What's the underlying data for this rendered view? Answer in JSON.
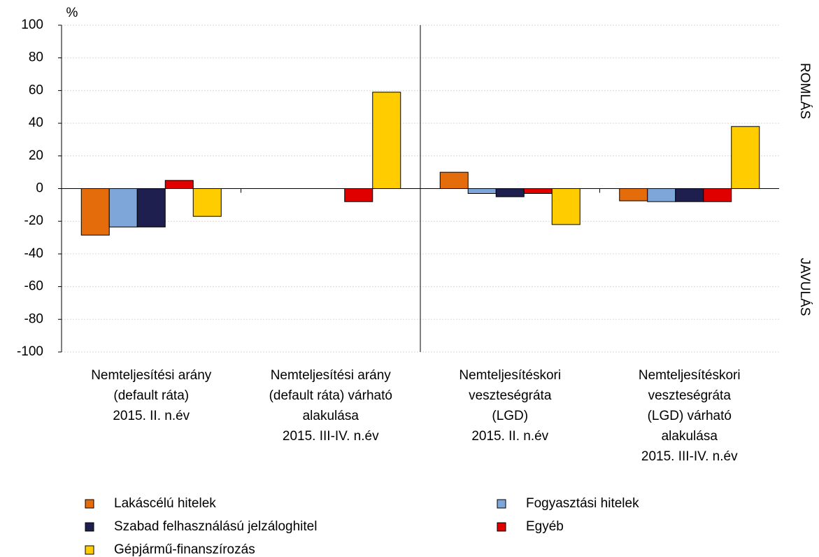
{
  "chart_data": {
    "type": "bar",
    "ylabel": "%",
    "annotations": [
      "ROMLÁS",
      "JAVULÁS"
    ],
    "categories": [
      "Nemteljesítési arány\n(default ráta)\n2015. II. n.év",
      "Nemteljesítési arány\n(default ráta) várható\nalakulása\n2015. III-IV. n.év",
      "Nemteljesítéskori\nveszteségráta\n(LGD)\n2015. II. n.év",
      "Nemteljesítéskori\nveszteségráta\n(LGD) várható\nalakulása\n2015. III-IV. n.év"
    ],
    "series": [
      {
        "name": "Lakáscélú hitelek",
        "color": "#e46c0a",
        "values": [
          -28.5,
          0,
          10,
          -7.5
        ]
      },
      {
        "name": "Fogyasztási hitelek",
        "color": "#7ea6d8",
        "values": [
          -23.5,
          0,
          -3,
          -8
        ]
      },
      {
        "name": "Szabad felhasználású jelzáloghitel",
        "color": "#1f1f4f",
        "values": [
          -23.5,
          0,
          -5,
          -8
        ]
      },
      {
        "name": "Egyéb",
        "color": "#e00000",
        "values": [
          5,
          -8,
          -3,
          -8
        ]
      },
      {
        "name": "Gépjármű-finanszírozás",
        "color": "#ffcc00",
        "values": [
          -17,
          59,
          -22,
          38
        ]
      }
    ],
    "ylim": [
      -100,
      100
    ],
    "yticks": [
      -100,
      -80,
      -60,
      -40,
      -20,
      0,
      20,
      40,
      60,
      80,
      100
    ],
    "grid": true
  }
}
